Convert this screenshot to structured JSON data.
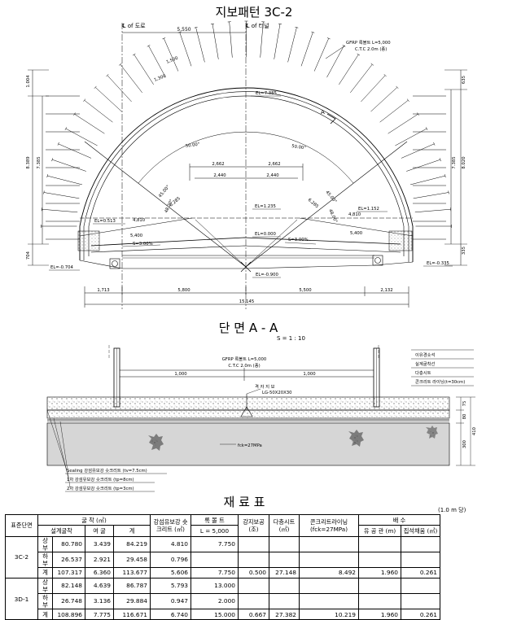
{
  "drawing": {
    "title": "지보패턴 3C-2",
    "cl_road": "℄ of 도로",
    "cl_tunnel": "℄ of 터널",
    "offset_cl": "5,550",
    "gfrp_label": "GFRP 록볼트 L=5,000",
    "ctc_label": "C.T.C 2.0m (종)",
    "bolt_len1": "1,500",
    "bolt_len2": "1,300",
    "el_top": "EL=7.385",
    "section_mark": "A",
    "angle_left": "50.00°",
    "angle_right": "50.00°",
    "dim_2662_l": "2,662",
    "dim_2662_r": "2,662",
    "dim_2440_l": "2,440",
    "dim_2440_r": "2,440",
    "left_height_total": "8.389",
    "left_height_mid": "7.385",
    "left_top": "1.004",
    "left_bottom": "704",
    "right_height_total": "8.020",
    "right_height_mid": "7.385",
    "right_top": "635",
    "right_bottom": "335",
    "radius_l": "6.285",
    "radius_r": "6.285",
    "ang_l1": "45.00°",
    "ang_l2": "48.20°",
    "ang_r1": "45.00°",
    "ang_r2": "48.00°",
    "el_l_spring": "EL=0.513",
    "el_r_spring": "EL=1.152",
    "el_mid1": "EL=1.235",
    "el_mid0": "EL=0.000",
    "dim_4810_l": "4,810",
    "dim_4810_r": "4,810",
    "dim_5400_l": "5,400",
    "dim_5400_r": "5,400",
    "slope_l": "S=3.00%",
    "slope_r": "S=3.00%",
    "el_bl": "EL=-0.704",
    "el_bc": "EL=-0.900",
    "el_br": "EL=-0.335",
    "bdim1": "1,713",
    "bdim2": "5,800",
    "bdim3": "5,500",
    "bdim4": "2,132",
    "btotal": "15,145"
  },
  "section": {
    "title": "단 면 A - A",
    "scale": "S = 1 : 10",
    "gfrp_label": "GFRP 록볼트 L=5,000",
    "ctc_label": "C.T.C 2.0m (종)",
    "dim_l": "1,000",
    "dim_r": "1,000",
    "steel_label": "격 자 지 보",
    "steel_spec": "LG-50X20X30",
    "fck": "fck=27MPa",
    "legend": [
      "이유경숏석",
      "실계굴착선",
      "다층시트",
      "콘크리트 라이닝(t=30cm)"
    ],
    "dim_right1": "75",
    "dim_right2": "80",
    "dim_right3": "300",
    "dim_right_total": "410",
    "note_sealing": "Sealing 강섬유보강 숏크리트 (tv=7.5cm)",
    "note_1st": "1차 강섬유보강 숏크리트 (tp=8cm)",
    "note_2nd": "2차 강섬유보강 숏크리트 (tp=3cm)"
  },
  "materials": {
    "title": "재 료 표",
    "unit": "(1.0 m 당)",
    "headers": {
      "pattern": "표준단면",
      "excavation": "굴 착 (㎥)",
      "exc_design": "설계굴착",
      "exc_over": "여 굴",
      "exc_total": "계",
      "shotcrete": "강섬유보강 숏크리트 (㎥)",
      "rockbolt": "록 볼 트",
      "rockbolt_len": "L = 5,000",
      "steel": "강지보공 (조)",
      "sheet": "다층시트 (㎡)",
      "lining": "콘크리트라이닝 (fck=27MPa)",
      "drain": "배 수",
      "drain_pipe": "유 공 관 (m)",
      "drain_gravel": "집석채움 (㎥)"
    },
    "groups": [
      {
        "name": "3C-2",
        "rows": [
          {
            "part": "상 부",
            "exc_design": "80.780",
            "exc_over": "3.439",
            "exc_total": "84.219",
            "shotcrete": "4.810",
            "rockbolt": "7.750",
            "steel": "",
            "sheet": "",
            "lining": "",
            "pipe": "",
            "gravel": ""
          },
          {
            "part": "하 부",
            "exc_design": "26.537",
            "exc_over": "2.921",
            "exc_total": "29.458",
            "shotcrete": "0.796",
            "rockbolt": "",
            "steel": "",
            "sheet": "",
            "lining": "",
            "pipe": "",
            "gravel": ""
          },
          {
            "part": "계",
            "exc_design": "107.317",
            "exc_over": "6.360",
            "exc_total": "113.677",
            "shotcrete": "5.606",
            "rockbolt": "7.750",
            "steel": "0.500",
            "sheet": "27.148",
            "lining": "8.492",
            "pipe": "1.960",
            "gravel": "0.261"
          }
        ]
      },
      {
        "name": "3D-1",
        "rows": [
          {
            "part": "상 부",
            "exc_design": "82.148",
            "exc_over": "4.639",
            "exc_total": "86.787",
            "shotcrete": "5.793",
            "rockbolt": "13.000",
            "steel": "",
            "sheet": "",
            "lining": "",
            "pipe": "",
            "gravel": ""
          },
          {
            "part": "하 부",
            "exc_design": "26.748",
            "exc_over": "3.136",
            "exc_total": "29.884",
            "shotcrete": "0.947",
            "rockbolt": "2.000",
            "steel": "",
            "sheet": "",
            "lining": "",
            "pipe": "",
            "gravel": ""
          },
          {
            "part": "계",
            "exc_design": "108.896",
            "exc_over": "7.775",
            "exc_total": "116.671",
            "shotcrete": "6.740",
            "rockbolt": "15.000",
            "steel": "0.667",
            "sheet": "27.382",
            "lining": "10.219",
            "pipe": "1.960",
            "gravel": "0.261"
          }
        ]
      }
    ]
  }
}
